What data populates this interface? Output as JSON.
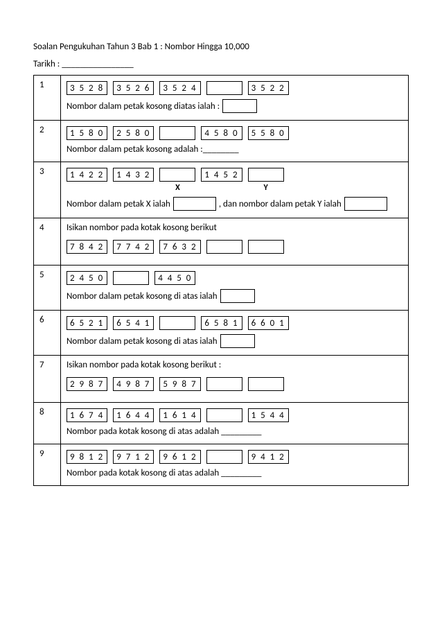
{
  "header": {
    "title": "Soalan Pengukuhan Tahun 3 Bab 1 : Nombor Hingga 10,000",
    "tarikh_label": "Tarikh :",
    "tarikh_blank": "________________"
  },
  "questions": [
    {
      "num": "1",
      "boxes": [
        "3 5 2 8",
        "3 5 2 6",
        "3 5 2 4",
        "",
        "3 5 2 2"
      ],
      "prompt_before": "Nombor dalam petak kosong diatas ialah :",
      "answer_style": "box"
    },
    {
      "num": "2",
      "boxes": [
        "1 5 8 0",
        "2 5 8 0",
        "",
        "4 5 8 0",
        "5 5 8 0"
      ],
      "prompt_before": "Nombor dalam petak kosong adalah :________"
    },
    {
      "num": "3",
      "boxes": [
        "1 4 2 2",
        "1 4 3 2",
        "",
        "1 4 5 2",
        ""
      ],
      "sublabels": [
        "",
        "",
        "X",
        "",
        "Y"
      ],
      "prompt_parts": [
        "Nombor dalam petak X ialah",
        "BOX",
        ", dan nombor dalam petak Y ialah",
        "BOX"
      ]
    },
    {
      "num": "4",
      "pre_prompt": "Isikan nombor pada kotak kosong berikut",
      "boxes": [
        "7 8 4 2",
        "7 7 4 2",
        "7 6 3 2",
        "",
        ""
      ]
    },
    {
      "num": "5",
      "boxes": [
        "2 4 5 0",
        "",
        "4 4 5 0"
      ],
      "prompt_before": "Nombor dalam petak kosong di atas ialah",
      "answer_style": "box"
    },
    {
      "num": "6",
      "boxes": [
        "6 5 2 1",
        "6 5 4 1",
        "",
        "6 5 8 1",
        "6 6 0 1"
      ],
      "prompt_before": "Nombor dalam petak kosong di atas ialah",
      "answer_style": "box"
    },
    {
      "num": "7",
      "pre_prompt": "Isikan nombor pada kotak kosong berikut :",
      "boxes": [
        "2 9 8 7",
        "4 9 8 7",
        "5 9 8 7",
        "",
        ""
      ]
    },
    {
      "num": "8",
      "boxes": [
        "1 6 7 4",
        "1 6 4 4",
        "1 6 1 4",
        "",
        "1 5 4 4"
      ],
      "prompt_before": "Nombor pada kotak kosong di atas adalah _________"
    },
    {
      "num": "9",
      "boxes": [
        "9 8 1 2",
        "9 7 1 2",
        "9 6 1 2",
        "",
        "9 4 1 2"
      ],
      "prompt_before": "Nombor pada kotak kosong di atas adalah _________"
    }
  ]
}
